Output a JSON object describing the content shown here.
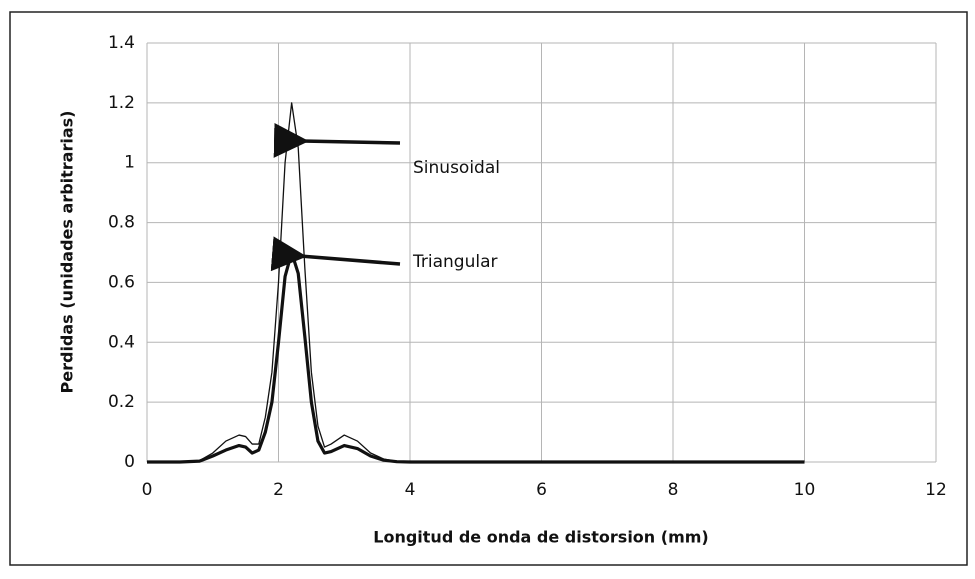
{
  "chart_data": {
    "type": "line",
    "xlabel": "Longitud de onda de distorsion (mm)",
    "ylabel": "Perdidas (unidades arbitrarias)",
    "x": [
      0,
      0.5,
      0.8,
      1.0,
      1.2,
      1.4,
      1.5,
      1.6,
      1.7,
      1.8,
      1.9,
      2.0,
      2.1,
      2.2,
      2.3,
      2.4,
      2.5,
      2.6,
      2.7,
      2.8,
      3.0,
      3.2,
      3.4,
      3.6,
      3.8,
      4,
      5,
      6,
      7,
      8,
      9,
      10
    ],
    "series": [
      {
        "name": "Sinusoidal",
        "color": "#111111",
        "values": [
          0,
          0,
          0.005,
          0.03,
          0.07,
          0.09,
          0.085,
          0.06,
          0.06,
          0.15,
          0.3,
          0.6,
          1.0,
          1.2,
          1.05,
          0.65,
          0.3,
          0.12,
          0.05,
          0.06,
          0.09,
          0.07,
          0.03,
          0.01,
          0.002,
          0,
          0,
          0,
          0,
          0,
          0,
          0
        ]
      },
      {
        "name": "Triangular",
        "color": "#111111",
        "values": [
          0,
          0,
          0.003,
          0.02,
          0.04,
          0.055,
          0.05,
          0.03,
          0.04,
          0.1,
          0.2,
          0.4,
          0.62,
          0.7,
          0.63,
          0.42,
          0.2,
          0.07,
          0.03,
          0.035,
          0.055,
          0.045,
          0.02,
          0.006,
          0.001,
          0,
          0,
          0,
          0,
          0,
          0,
          0
        ]
      }
    ],
    "annotations": [
      "Sinusoidal",
      "Triangular"
    ],
    "xlim": [
      0,
      12
    ],
    "xticks": [
      0,
      2,
      4,
      6,
      8,
      10,
      12
    ],
    "ylim": [
      0,
      1.4
    ],
    "yticks": [
      0,
      0.2,
      0.4,
      0.6,
      0.8,
      1,
      1.2,
      1.4
    ],
    "grid": true
  }
}
